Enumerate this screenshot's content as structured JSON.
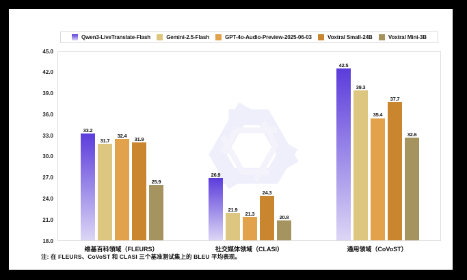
{
  "note": "注: 在 FLEURS、CoVoST 和 CLASI 三个基准测试集上的 BLEU 平均表现。",
  "colors": {
    "background": "#ffffff",
    "frame": "#000000",
    "plot_border": "#dedede",
    "legend_border": "#d9d9d9",
    "watermark": "#efeefb",
    "qwen_purple_top": "#5b3cdb",
    "qwen_purple_bottom": "#dcd6f5"
  },
  "chart_data": {
    "type": "bar",
    "title": "",
    "xlabel": "",
    "ylabel": "",
    "categories": [
      "维基百科领域（FLEURS）",
      "社交媒体领域（CLASI）",
      "通用领域（CoVoST）"
    ],
    "series": [
      {
        "name": "Qwen3-LiveTranslate-Flash",
        "color": "#5b3cdb",
        "color_bottom": "#dcd6f5",
        "values": [
          33.2,
          26.9,
          42.5
        ]
      },
      {
        "name": "Gemini-2.5-Flash",
        "color": "#ddc67f",
        "values": [
          31.7,
          21.9,
          39.3
        ]
      },
      {
        "name": "GPT-4o-Audio-Preview-2025-06-03",
        "color": "#e2a24c",
        "values": [
          32.4,
          21.3,
          35.4
        ]
      },
      {
        "name": "Voxtral Small-24B",
        "color": "#c9862f",
        "values": [
          31.9,
          24.3,
          37.7
        ]
      },
      {
        "name": "Voxtral Mini-3B",
        "color": "#a69460",
        "values": [
          25.9,
          20.8,
          32.6
        ]
      }
    ],
    "ylim": [
      18.0,
      45.0
    ],
    "ytick_step": 3.0,
    "yticks": [
      "45.0",
      "42.0",
      "39.0",
      "36.0",
      "33.0",
      "30.0",
      "27.0",
      "24.0",
      "21.0",
      "18.0"
    ],
    "grid": false,
    "legend_position": "top",
    "value_labels": true,
    "metric": "BLEU"
  },
  "watermark_icon": "qwen-logo"
}
